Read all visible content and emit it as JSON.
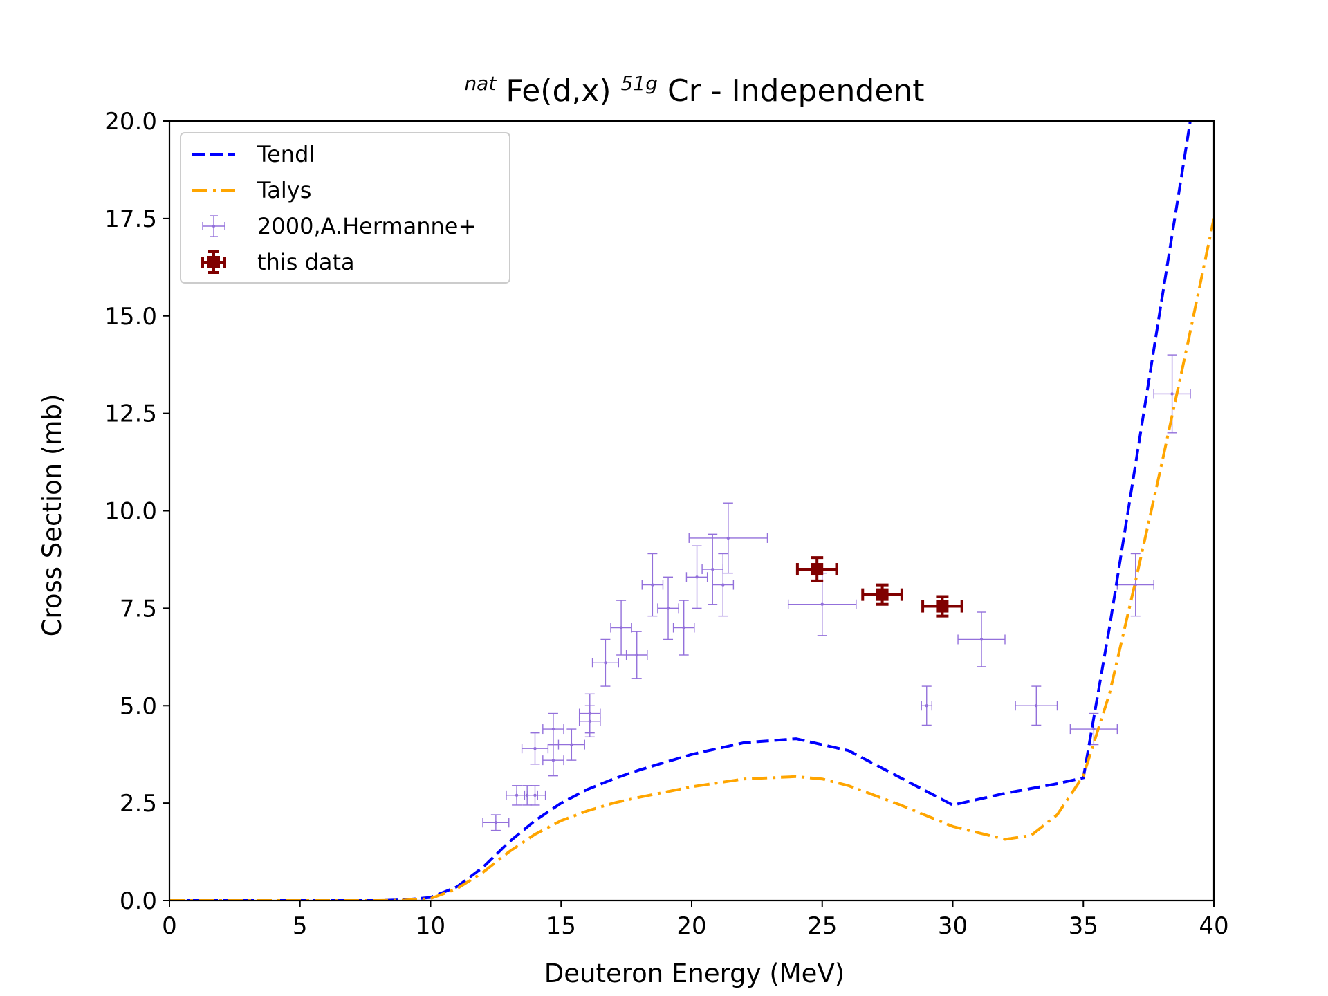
{
  "chart_data": {
    "type": "line",
    "title": {
      "pre_sup": "nat",
      "base": "Fe(d,x)",
      "mid_sup": "51g",
      "rest": "Cr - Independent"
    },
    "xlabel": "Deuteron Energy (MeV)",
    "ylabel": "Cross Section (mb)",
    "xlim": [
      0,
      40
    ],
    "ylim": [
      0,
      20
    ],
    "xticks": [
      "0",
      "5",
      "10",
      "15",
      "20",
      "25",
      "30",
      "35",
      "40"
    ],
    "yticks": [
      "0.0",
      "2.5",
      "5.0",
      "7.5",
      "10.0",
      "12.5",
      "15.0",
      "17.5",
      "20.0"
    ],
    "grid": false,
    "legend_position": "top-left",
    "series": [
      {
        "name": "Tendl",
        "style": "dashed",
        "color": "#0000ff",
        "x": [
          0,
          2,
          4,
          6,
          8,
          9,
          10,
          11,
          12,
          13,
          14,
          15,
          16,
          17,
          18,
          20,
          22,
          24,
          26,
          28,
          30,
          32,
          34,
          35,
          36,
          37,
          38,
          39,
          40
        ],
        "y": [
          0.0,
          0.0,
          0.0,
          0.0,
          0.0,
          0.02,
          0.08,
          0.35,
          0.85,
          1.5,
          2.05,
          2.5,
          2.85,
          3.12,
          3.35,
          3.75,
          4.05,
          4.15,
          3.85,
          3.15,
          2.45,
          2.75,
          3.0,
          3.15,
          7.0,
          11.2,
          15.4,
          19.6,
          23.8
        ]
      },
      {
        "name": "Talys",
        "style": "dashdot",
        "color": "#ffa500",
        "x": [
          0,
          2,
          4,
          6,
          8,
          9,
          10,
          11,
          12,
          13,
          14,
          15,
          16,
          17,
          18,
          20,
          22,
          24,
          25,
          26,
          28,
          30,
          32,
          33,
          34,
          35,
          36,
          37,
          38,
          39,
          40
        ],
        "y": [
          0.0,
          0.0,
          0.0,
          0.0,
          0.0,
          0.01,
          0.05,
          0.3,
          0.72,
          1.25,
          1.7,
          2.05,
          2.3,
          2.5,
          2.65,
          2.92,
          3.12,
          3.18,
          3.12,
          2.95,
          2.45,
          1.9,
          1.57,
          1.67,
          2.2,
          3.2,
          5.3,
          8.2,
          11.2,
          14.3,
          17.5
        ]
      },
      {
        "name": "2000,A.Hermanne+",
        "style": "errorbar",
        "color": "#9370db",
        "points": [
          {
            "x": 12.5,
            "y": 2.0,
            "xerr": 0.5,
            "yerr": 0.2
          },
          {
            "x": 13.3,
            "y": 2.7,
            "xerr": 0.4,
            "yerr": 0.25
          },
          {
            "x": 13.7,
            "y": 2.7,
            "xerr": 0.4,
            "yerr": 0.25
          },
          {
            "x": 14.0,
            "y": 2.7,
            "xerr": 0.4,
            "yerr": 0.25
          },
          {
            "x": 14.0,
            "y": 3.9,
            "xerr": 0.5,
            "yerr": 0.4
          },
          {
            "x": 14.7,
            "y": 3.6,
            "xerr": 0.4,
            "yerr": 0.4
          },
          {
            "x": 14.7,
            "y": 4.4,
            "xerr": 0.4,
            "yerr": 0.4
          },
          {
            "x": 15.4,
            "y": 4.0,
            "xerr": 0.5,
            "yerr": 0.4
          },
          {
            "x": 16.1,
            "y": 4.6,
            "xerr": 0.4,
            "yerr": 0.4
          },
          {
            "x": 16.1,
            "y": 4.8,
            "xerr": 0.4,
            "yerr": 0.5
          },
          {
            "x": 16.7,
            "y": 6.1,
            "xerr": 0.5,
            "yerr": 0.6
          },
          {
            "x": 17.3,
            "y": 7.0,
            "xerr": 0.4,
            "yerr": 0.7
          },
          {
            "x": 17.9,
            "y": 6.3,
            "xerr": 0.4,
            "yerr": 0.6
          },
          {
            "x": 18.5,
            "y": 8.1,
            "xerr": 0.4,
            "yerr": 0.8
          },
          {
            "x": 19.1,
            "y": 7.5,
            "xerr": 0.4,
            "yerr": 0.8
          },
          {
            "x": 19.7,
            "y": 7.0,
            "xerr": 0.4,
            "yerr": 0.7
          },
          {
            "x": 20.2,
            "y": 8.3,
            "xerr": 0.4,
            "yerr": 0.8
          },
          {
            "x": 20.8,
            "y": 8.5,
            "xerr": 0.4,
            "yerr": 0.9
          },
          {
            "x": 21.2,
            "y": 8.1,
            "xerr": 0.4,
            "yerr": 0.8
          },
          {
            "x": 21.4,
            "y": 9.3,
            "xerr": 1.5,
            "yerr": 0.9
          },
          {
            "x": 25.0,
            "y": 7.6,
            "xerr": 1.3,
            "yerr": 0.8
          },
          {
            "x": 29.0,
            "y": 5.0,
            "xerr": 0.2,
            "yerr": 0.5
          },
          {
            "x": 31.1,
            "y": 6.7,
            "xerr": 0.9,
            "yerr": 0.7
          },
          {
            "x": 33.2,
            "y": 5.0,
            "xerr": 0.8,
            "yerr": 0.5
          },
          {
            "x": 35.4,
            "y": 4.4,
            "xerr": 0.9,
            "yerr": 0.4
          },
          {
            "x": 37.0,
            "y": 8.1,
            "xerr": 0.7,
            "yerr": 0.8
          },
          {
            "x": 38.4,
            "y": 13.0,
            "xerr": 0.7,
            "yerr": 1.0
          }
        ]
      },
      {
        "name": "this data",
        "style": "errorbar-bold",
        "color": "#800000",
        "points": [
          {
            "x": 24.8,
            "y": 8.5,
            "xerr": 0.75,
            "yerr": 0.3
          },
          {
            "x": 27.3,
            "y": 7.85,
            "xerr": 0.75,
            "yerr": 0.25
          },
          {
            "x": 29.6,
            "y": 7.55,
            "xerr": 0.75,
            "yerr": 0.25
          }
        ]
      }
    ]
  }
}
